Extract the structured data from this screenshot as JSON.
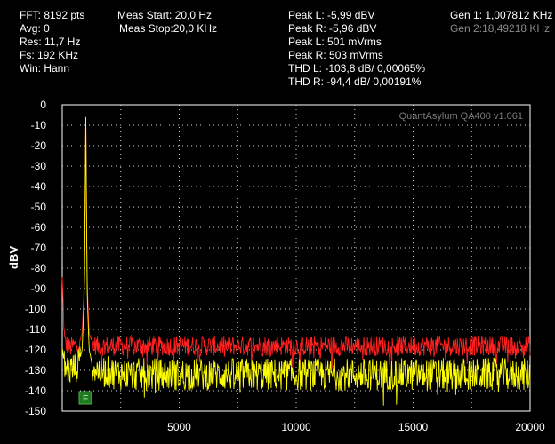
{
  "settings": {
    "fft": "FFT: 8192 pts",
    "avg": "Avg: 0",
    "res": "Res: 11,7 Hz",
    "fs": "Fs: 192 KHz",
    "win": "Win: Hann"
  },
  "measure": {
    "start": "Meas Start: 20,0 Hz",
    "stop": "Meas Stop:20,0 KHz"
  },
  "readings": {
    "peak_l_dbv": "Peak L: -5,99 dBV",
    "peak_r_dbv": "Peak R: -5,96 dBV",
    "peak_l_mv": "Peak L: 501 mVrms",
    "peak_r_mv": "Peak R: 503 mVrms",
    "thd_l": "THD L: -103,8 dB/ 0,00065%",
    "thd_r": "THD R: -94,4 dB/ 0,00191%"
  },
  "generators": {
    "gen1": "Gen 1: 1,007812 KHz",
    "gen2": "Gen 2:18,49218 KHz"
  },
  "watermark": "QuantAsylum QA400 v1.061",
  "marker_label": "F",
  "colors": {
    "background": "#000000",
    "plot_frame": "#ffffff",
    "grid": "#cfcfcf",
    "left_channel": "#ffff00",
    "right_channel": "#ff2020",
    "marker": "#1f7a1f"
  },
  "chart_data": {
    "type": "line",
    "xlabel": "",
    "ylabel": "dBV",
    "xlim": [
      0,
      20000
    ],
    "ylim": [
      -150,
      0
    ],
    "x_ticks": [
      5000,
      10000,
      15000,
      20000
    ],
    "x_tick_labels": [
      "5000",
      "10000",
      "15000",
      "20000"
    ],
    "y_ticks": [
      0,
      -10,
      -20,
      -30,
      -40,
      -50,
      -60,
      -70,
      -80,
      -90,
      -100,
      -110,
      -120,
      -130,
      -140,
      -150
    ],
    "y_tick_labels": [
      "0",
      "-10",
      "-20",
      "-30",
      "-40",
      "-50",
      "-60",
      "-70",
      "-80",
      "-90",
      "-100",
      "-110",
      "-120",
      "-130",
      "-140",
      "-150"
    ],
    "grid": true,
    "series": [
      {
        "color": "#ff2020",
        "x": [
          0,
          100,
          300,
          500,
          700,
          850,
          950,
          1008,
          1060,
          1150,
          1300,
          1500,
          2000,
          3000,
          4000,
          5000,
          6000,
          7000,
          8000,
          9000,
          10000,
          11000,
          12000,
          13000,
          14000,
          15000,
          16000,
          17000,
          18000,
          18492,
          19000,
          20000
        ],
        "values": [
          -86,
          -116,
          -119,
          -118,
          -117,
          -112,
          -85,
          -6,
          -85,
          -112,
          -117,
          -118,
          -118,
          -118,
          -118,
          -118,
          -118,
          -118,
          -118,
          -118,
          -118,
          -118,
          -118,
          -118,
          -118,
          -118,
          -118,
          -118,
          -118,
          -118,
          -118,
          -118
        ]
      },
      {
        "color": "#ffff00",
        "x": [
          0,
          100,
          300,
          500,
          700,
          850,
          950,
          1008,
          1060,
          1150,
          1300,
          1500,
          2000,
          3000,
          4000,
          5000,
          6000,
          7000,
          8000,
          9000,
          10000,
          11000,
          12000,
          13000,
          14000,
          15000,
          16000,
          17000,
          18000,
          18492,
          19000,
          20000
        ],
        "values": [
          -120,
          -128,
          -130,
          -129,
          -127,
          -120,
          -90,
          -6,
          -90,
          -120,
          -128,
          -130,
          -131,
          -132,
          -132,
          -132,
          -132,
          -132,
          -132,
          -132,
          -132,
          -132,
          -132,
          -132,
          -132,
          -132,
          -132,
          -132,
          -132,
          -132,
          -132,
          -132
        ]
      }
    ]
  }
}
